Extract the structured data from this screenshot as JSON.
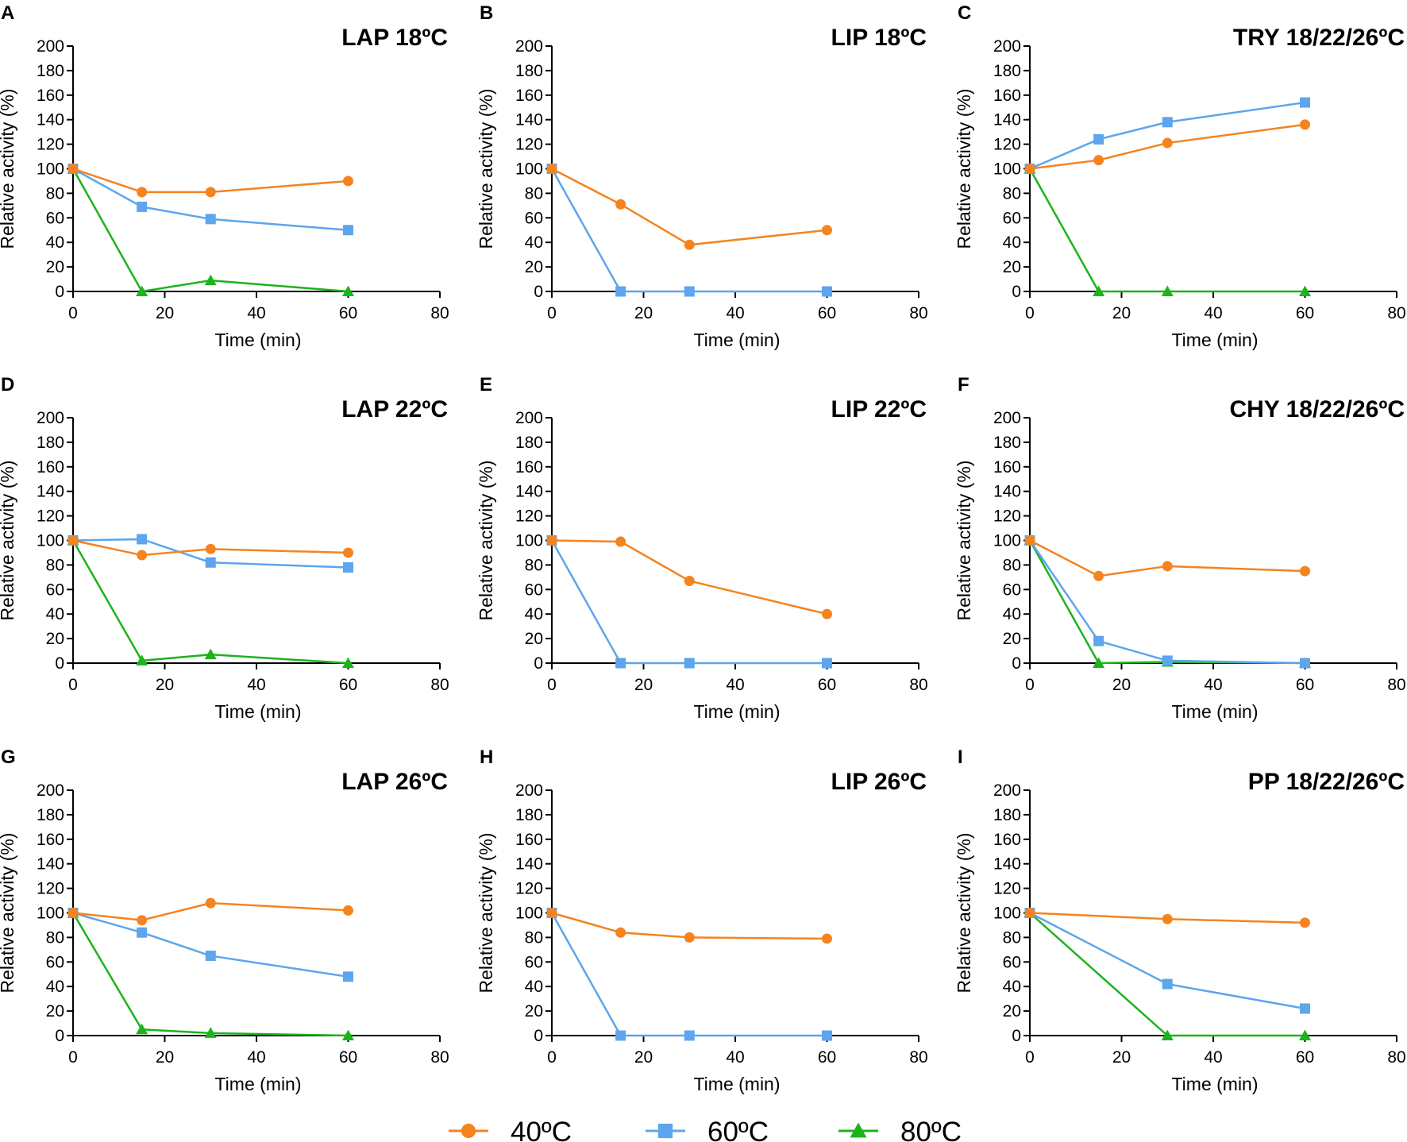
{
  "chart_data": [
    {
      "letter": "A",
      "title": "LAP 18ºC",
      "type": "line",
      "xlabel": "Time (min)",
      "ylabel": "Relative activity (%)",
      "xlim": [
        0,
        80
      ],
      "ylim": [
        0,
        200
      ],
      "xticks": [
        0,
        20,
        40,
        60,
        80
      ],
      "yticks": [
        0,
        20,
        40,
        60,
        80,
        100,
        120,
        140,
        160,
        180,
        200
      ],
      "series": [
        {
          "name": "40ºC",
          "x": [
            0,
            15,
            30,
            60
          ],
          "values": [
            100,
            81,
            81,
            90
          ]
        },
        {
          "name": "60ºC",
          "x": [
            0,
            15,
            30,
            60
          ],
          "values": [
            100,
            69,
            59,
            50
          ]
        },
        {
          "name": "80ºC",
          "x": [
            0,
            15,
            30,
            60
          ],
          "values": [
            100,
            0,
            9,
            0
          ]
        }
      ]
    },
    {
      "letter": "B",
      "title": "LIP 18ºC",
      "type": "line",
      "xlabel": "Time (min)",
      "ylabel": "Relative activity (%)",
      "xlim": [
        0,
        80
      ],
      "ylim": [
        0,
        200
      ],
      "xticks": [
        0,
        20,
        40,
        60,
        80
      ],
      "yticks": [
        0,
        20,
        40,
        60,
        80,
        100,
        120,
        140,
        160,
        180,
        200
      ],
      "series": [
        {
          "name": "40ºC",
          "x": [
            0,
            15,
            30,
            60
          ],
          "values": [
            100,
            71,
            38,
            50
          ]
        },
        {
          "name": "60ºC",
          "x": [
            0,
            15,
            30,
            60
          ],
          "values": [
            100,
            0,
            0,
            0
          ]
        }
      ]
    },
    {
      "letter": "C",
      "title": "TRY 18/22/26ºC",
      "type": "line",
      "xlabel": "Time (min)",
      "ylabel": "Relative activity (%)",
      "xlim": [
        0,
        80
      ],
      "ylim": [
        0,
        200
      ],
      "xticks": [
        0,
        20,
        40,
        60,
        80
      ],
      "yticks": [
        0,
        20,
        40,
        60,
        80,
        100,
        120,
        140,
        160,
        180,
        200
      ],
      "series": [
        {
          "name": "40ºC",
          "x": [
            0,
            15,
            30,
            60
          ],
          "values": [
            100,
            107,
            121,
            136
          ]
        },
        {
          "name": "60ºC",
          "x": [
            0,
            15,
            30,
            60
          ],
          "values": [
            100,
            124,
            138,
            154
          ]
        },
        {
          "name": "80ºC",
          "x": [
            0,
            15,
            30,
            60
          ],
          "values": [
            100,
            0,
            0,
            0
          ]
        }
      ]
    },
    {
      "letter": "D",
      "title": "LAP 22ºC",
      "type": "line",
      "xlabel": "Time (min)",
      "ylabel": "Relative activity (%)",
      "xlim": [
        0,
        80
      ],
      "ylim": [
        0,
        200
      ],
      "xticks": [
        0,
        20,
        40,
        60,
        80
      ],
      "yticks": [
        0,
        20,
        40,
        60,
        80,
        100,
        120,
        140,
        160,
        180,
        200
      ],
      "series": [
        {
          "name": "40ºC",
          "x": [
            0,
            15,
            30,
            60
          ],
          "values": [
            100,
            88,
            93,
            90
          ]
        },
        {
          "name": "60ºC",
          "x": [
            0,
            15,
            30,
            60
          ],
          "values": [
            100,
            101,
            82,
            78
          ]
        },
        {
          "name": "80ºC",
          "x": [
            0,
            15,
            30,
            60
          ],
          "values": [
            100,
            2,
            7,
            0
          ]
        }
      ]
    },
    {
      "letter": "E",
      "title": "LIP 22ºC",
      "type": "line",
      "xlabel": "Time (min)",
      "ylabel": "Relative activity (%)",
      "xlim": [
        0,
        80
      ],
      "ylim": [
        0,
        200
      ],
      "xticks": [
        0,
        20,
        40,
        60,
        80
      ],
      "yticks": [
        0,
        20,
        40,
        60,
        80,
        100,
        120,
        140,
        160,
        180,
        200
      ],
      "series": [
        {
          "name": "40ºC",
          "x": [
            0,
            15,
            30,
            60
          ],
          "values": [
            100,
            99,
            67,
            40
          ]
        },
        {
          "name": "60ºC",
          "x": [
            0,
            15,
            30,
            60
          ],
          "values": [
            100,
            0,
            0,
            0
          ]
        }
      ]
    },
    {
      "letter": "F",
      "title": "CHY 18/22/26ºC",
      "type": "line",
      "xlabel": "Time (min)",
      "ylabel": "Relative activity (%)",
      "xlim": [
        0,
        80
      ],
      "ylim": [
        0,
        200
      ],
      "xticks": [
        0,
        20,
        40,
        60,
        80
      ],
      "yticks": [
        0,
        20,
        40,
        60,
        80,
        100,
        120,
        140,
        160,
        180,
        200
      ],
      "series": [
        {
          "name": "40ºC",
          "x": [
            0,
            15,
            30,
            60
          ],
          "values": [
            100,
            71,
            79,
            75
          ]
        },
        {
          "name": "60ºC",
          "x": [
            0,
            15,
            30,
            60
          ],
          "values": [
            100,
            18,
            2,
            0
          ]
        },
        {
          "name": "80ºC",
          "x": [
            0,
            15,
            30,
            60
          ],
          "values": [
            100,
            0,
            1,
            0
          ]
        }
      ]
    },
    {
      "letter": "G",
      "title": "LAP 26ºC",
      "type": "line",
      "xlabel": "Time (min)",
      "ylabel": "Relative activity (%)",
      "xlim": [
        0,
        80
      ],
      "ylim": [
        0,
        200
      ],
      "xticks": [
        0,
        20,
        40,
        60,
        80
      ],
      "yticks": [
        0,
        20,
        40,
        60,
        80,
        100,
        120,
        140,
        160,
        180,
        200
      ],
      "series": [
        {
          "name": "40ºC",
          "x": [
            0,
            15,
            30,
            60
          ],
          "values": [
            100,
            94,
            108,
            102
          ]
        },
        {
          "name": "60ºC",
          "x": [
            0,
            15,
            30,
            60
          ],
          "values": [
            100,
            84,
            65,
            48
          ]
        },
        {
          "name": "80ºC",
          "x": [
            0,
            15,
            30,
            60
          ],
          "values": [
            100,
            5,
            2,
            0
          ]
        }
      ]
    },
    {
      "letter": "H",
      "title": "LIP 26ºC",
      "type": "line",
      "xlabel": "Time (min)",
      "ylabel": "Relative activity (%)",
      "xlim": [
        0,
        80
      ],
      "ylim": [
        0,
        200
      ],
      "xticks": [
        0,
        20,
        40,
        60,
        80
      ],
      "yticks": [
        0,
        20,
        40,
        60,
        80,
        100,
        120,
        140,
        160,
        180,
        200
      ],
      "series": [
        {
          "name": "40ºC",
          "x": [
            0,
            15,
            30,
            60
          ],
          "values": [
            100,
            84,
            80,
            79
          ]
        },
        {
          "name": "60ºC",
          "x": [
            0,
            15,
            30,
            60
          ],
          "values": [
            100,
            0,
            0,
            0
          ]
        }
      ]
    },
    {
      "letter": "I",
      "title": "PP 18/22/26ºC",
      "type": "line",
      "xlabel": "Time (min)",
      "ylabel": "Relative activity (%)",
      "xlim": [
        0,
        80
      ],
      "ylim": [
        0,
        200
      ],
      "xticks": [
        0,
        20,
        40,
        60,
        80
      ],
      "yticks": [
        0,
        20,
        40,
        60,
        80,
        100,
        120,
        140,
        160,
        180,
        200
      ],
      "series": [
        {
          "name": "40ºC",
          "x": [
            0,
            30,
            60
          ],
          "values": [
            100,
            95,
            92
          ]
        },
        {
          "name": "60ºC",
          "x": [
            0,
            30,
            60
          ],
          "values": [
            100,
            42,
            22
          ]
        },
        {
          "name": "80ºC",
          "x": [
            0,
            30,
            60
          ],
          "values": [
            100,
            0,
            0
          ]
        }
      ]
    }
  ],
  "legend": {
    "position": "bottom-center",
    "entries": [
      {
        "name": "40ºC",
        "color": "#F5831F",
        "marker": "circle"
      },
      {
        "name": "60ºC",
        "color": "#5DA5EC",
        "marker": "square"
      },
      {
        "name": "80ºC",
        "color": "#1DB31D",
        "marker": "triangle"
      }
    ]
  }
}
